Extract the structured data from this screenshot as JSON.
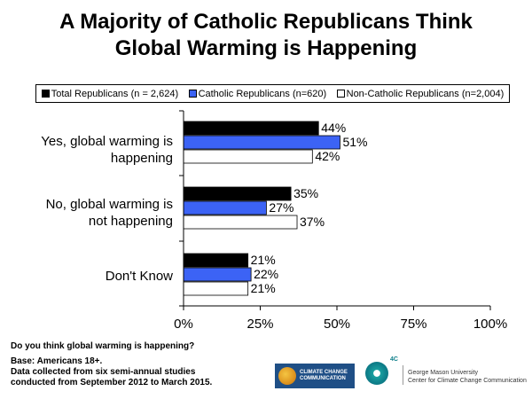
{
  "title": {
    "line1": "A Majority of Catholic Republicans Think",
    "line2": "Global Warming is Happening"
  },
  "legend": [
    {
      "label": "Total Republicans (n = 2,624)",
      "color": "#000000"
    },
    {
      "label": "Catholic Republicans (n=620)",
      "color": "#3c63f5"
    },
    {
      "label": "Non-Catholic Republicans (n=2,004)",
      "color": "#ffffff"
    }
  ],
  "category_labels": [
    {
      "line1": "Yes, global warming is",
      "line2": "happening"
    },
    {
      "line1": "No, global warming is",
      "line2": "not happening"
    },
    {
      "line1": "Don't Know",
      "line2": ""
    }
  ],
  "chart_data": {
    "type": "bar",
    "orientation": "horizontal",
    "categories": [
      "Yes, global warming is happening",
      "No, global warming is not happening",
      "Don't Know"
    ],
    "series": [
      {
        "name": "Total Republicans (n = 2,624)",
        "values": [
          44,
          35,
          21
        ],
        "color": "#000000"
      },
      {
        "name": "Catholic Republicans (n=620)",
        "values": [
          51,
          27,
          22
        ],
        "color": "#3c63f5"
      },
      {
        "name": "Non-Catholic Republicans (n=2,004)",
        "values": [
          42,
          37,
          21
        ],
        "color": "#ffffff"
      }
    ],
    "value_labels": [
      [
        "44%",
        "35%",
        "21%"
      ],
      [
        "51%",
        "27%",
        "22%"
      ],
      [
        "42%",
        "37%",
        "21%"
      ]
    ],
    "xlim": [
      0,
      100
    ],
    "xticks": [
      0,
      25,
      50,
      75,
      100
    ],
    "xtick_labels": [
      "0%",
      "25%",
      "50%",
      "75%",
      "100%"
    ],
    "grid": false,
    "legend_position": "top"
  },
  "notes": {
    "question": "Do you think global warming is happening?",
    "base_line1": "Base: Americans 18+.",
    "base_line2": "Data collected from six semi-annual studies",
    "base_line3": "conducted from September 2012 to March 2015."
  },
  "logos": {
    "cccc_line1": "CLIMATE CHANGE",
    "cccc_line2": "COMMUNICATION",
    "fourc": "4C",
    "gmu_line1": "George Mason University",
    "gmu_line2": "Center for Climate Change Communication"
  }
}
